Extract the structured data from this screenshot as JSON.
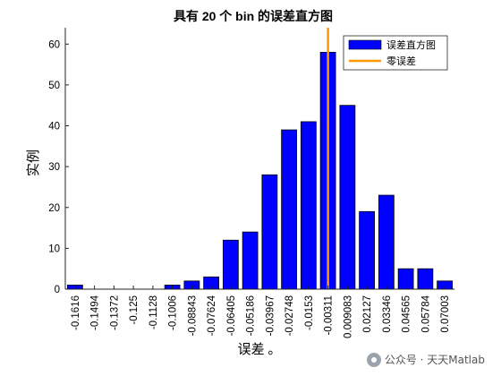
{
  "chart_data": {
    "type": "bar",
    "title": "具有 20 个 bin 的误差直方图",
    "xlabel": "误差 。",
    "ylabel": "实例",
    "categories": [
      "-0.1616",
      "-0.1494",
      "-0.1372",
      "-0.125",
      "-0.1128",
      "-0.1006",
      "-0.08843",
      "-0.07624",
      "-0.06405",
      "-0.05186",
      "-0.03967",
      "-0.02748",
      "-0.0153",
      "-0.00311",
      "0.009083",
      "0.02127",
      "0.03346",
      "0.04565",
      "0.05784",
      "0.07003"
    ],
    "values": [
      1,
      0,
      0,
      0,
      0,
      1,
      2,
      3,
      12,
      14,
      28,
      39,
      41,
      58,
      45,
      19,
      23,
      5,
      5,
      2
    ],
    "ylim": [
      0,
      64
    ],
    "yticks": [
      0,
      10,
      20,
      30,
      40,
      50,
      60
    ],
    "zero_line_position": 13.5,
    "legend": {
      "placement": "top-right",
      "entries": [
        {
          "label": "误差直方图",
          "color": "#0000ff",
          "kind": "bar"
        },
        {
          "label": "零误差",
          "color": "#ff9900",
          "kind": "line"
        }
      ]
    },
    "colors": {
      "bar_fill": "#0000ff",
      "bar_edge": "#000000",
      "zero_line": "#ff9900"
    }
  },
  "watermark": {
    "text": "公众号 · 天天Matlab",
    "icon": "wechat-icon"
  }
}
